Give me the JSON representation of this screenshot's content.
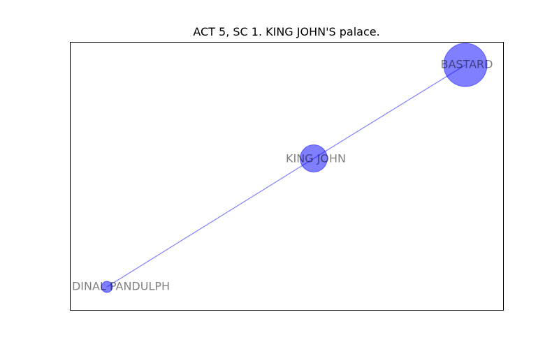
{
  "title": "ACT 5, SC 1. KING JOHN'S palace.",
  "colors": {
    "node_fill": "#0000ff",
    "edge": "#0000ff",
    "label": "#000000",
    "frame": "#000000"
  },
  "nodes": [
    {
      "id": "bastard",
      "label": "BASTARD",
      "weight": 9
    },
    {
      "id": "king_john",
      "label": "KING JOHN",
      "weight": 3
    },
    {
      "id": "cardinal_pandulph",
      "label": "DINAL PANDULPH",
      "weight": 1
    }
  ],
  "edges": [
    {
      "source": "cardinal_pandulph",
      "target": "king_john"
    },
    {
      "source": "king_john",
      "target": "bastard"
    }
  ]
}
